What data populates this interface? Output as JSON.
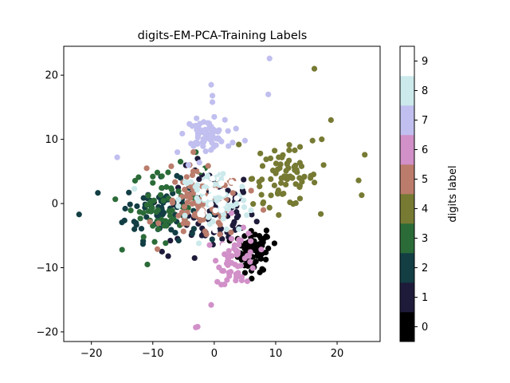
{
  "chart_data": {
    "type": "scatter",
    "title": "digits-EM-PCA-Training Labels",
    "xlabel": "",
    "ylabel": "",
    "xlim": [
      -24.5,
      27
    ],
    "ylim": [
      -21.5,
      24.5
    ],
    "xticks": [
      -20,
      -10,
      0,
      10,
      20
    ],
    "yticks": [
      -20,
      -10,
      0,
      10,
      20
    ],
    "grid": false,
    "colorbar": {
      "label": "digits label",
      "ticks": [
        "0",
        "1",
        "2",
        "3",
        "4",
        "5",
        "6",
        "7",
        "8",
        "9"
      ],
      "range": [
        -0.5,
        9.5
      ],
      "colors": [
        "#000000",
        "#1e1b3a",
        "#123e44",
        "#2b6b38",
        "#767a33",
        "#bb7c6c",
        "#d190c8",
        "#c1bfef",
        "#cce9eb",
        "#ffffff"
      ]
    },
    "series": [
      {
        "name": "0",
        "color": "#000000",
        "center": [
          6.5,
          -7.5
        ],
        "spread": [
          1.3,
          1.6
        ],
        "count": 70,
        "points": [
          [
            2.5,
            -5.8
          ],
          [
            4.5,
            -3.8
          ],
          [
            9.8,
            -6.2
          ],
          [
            8.5,
            -4.2
          ],
          [
            7.8,
            -10.2
          ],
          [
            5.0,
            -10.8
          ],
          [
            -9.8,
            0.2
          ]
        ]
      },
      {
        "name": "1",
        "color": "#1e1b3a",
        "center": [
          -0.5,
          -1.0
        ],
        "spread": [
          3.5,
          3.2
        ],
        "count": 80,
        "points": [
          [
            -8.5,
            -7.5
          ],
          [
            -7.5,
            -8.2
          ],
          [
            -3.2,
            -8.5
          ],
          [
            0.5,
            2.2
          ],
          [
            2.0,
            1.8
          ],
          [
            -2.0,
            4.5
          ]
        ]
      },
      {
        "name": "2",
        "color": "#123e44",
        "center": [
          -8.5,
          -1.0
        ],
        "spread": [
          3.0,
          2.3
        ],
        "count": 80,
        "points": [
          [
            -22.0,
            -1.7
          ],
          [
            -14.5,
            -0.8
          ],
          [
            -13.0,
            -4.0
          ],
          [
            -5.5,
            4.0
          ]
        ]
      },
      {
        "name": "3",
        "color": "#2b6b38",
        "center": [
          -8.0,
          0.0
        ],
        "spread": [
          2.8,
          2.8
        ],
        "count": 55,
        "points": [
          [
            -15.0,
            -7.2
          ],
          [
            -11.5,
            -5.2
          ],
          [
            -3.0,
            8.0
          ],
          [
            -10.0,
            4.2
          ],
          [
            -1.5,
            5.5
          ]
        ]
      },
      {
        "name": "4",
        "color": "#767a33",
        "center": [
          11.5,
          4.0
        ],
        "spread": [
          2.6,
          2.2
        ],
        "count": 75,
        "points": [
          [
            16.3,
            21.0
          ],
          [
            19.0,
            13.0
          ],
          [
            24.5,
            7.6
          ],
          [
            24.0,
            1.3
          ],
          [
            23.5,
            3.6
          ],
          [
            17.5,
            10.0
          ],
          [
            16.0,
            9.8
          ],
          [
            17.8,
            6.0
          ],
          [
            7.5,
            7.8
          ],
          [
            4.0,
            9.2
          ],
          [
            8.0,
            0.2
          ]
        ]
      },
      {
        "name": "5",
        "color": "#bb7c6c",
        "center": [
          -2.0,
          -0.5
        ],
        "spread": [
          3.2,
          2.6
        ],
        "count": 90,
        "points": [
          [
            -11.0,
            5.5
          ],
          [
            -7.0,
            5.8
          ],
          [
            6.0,
            2.0
          ],
          [
            8.0,
            -1.0
          ],
          [
            -4.0,
            6.0
          ]
        ]
      },
      {
        "name": "6",
        "color": "#d190c8",
        "center": [
          3.8,
          -8.5
        ],
        "spread": [
          1.6,
          2.0
        ],
        "count": 55,
        "points": [
          [
            -3.0,
            -19.3
          ],
          [
            -2.7,
            -19.2
          ],
          [
            -0.5,
            -15.8
          ],
          [
            0.5,
            -12.2
          ],
          [
            3.5,
            -12.0
          ],
          [
            1.5,
            -10.5
          ],
          [
            2.8,
            -1.5
          ]
        ]
      },
      {
        "name": "7",
        "color": "#c1bfef",
        "center": [
          -1.5,
          10.8
        ],
        "spread": [
          1.6,
          1.1
        ],
        "count": 70,
        "points": [
          [
            9.0,
            22.6
          ],
          [
            8.8,
            17.0
          ],
          [
            -0.5,
            18.5
          ],
          [
            -0.3,
            16.8
          ],
          [
            -0.3,
            15.8
          ],
          [
            0.0,
            13.5
          ],
          [
            -15.8,
            7.2
          ],
          [
            3.0,
            9.5
          ],
          [
            5.0,
            9.8
          ],
          [
            -4.2,
            6.0
          ],
          [
            -6.0,
            8.0
          ]
        ]
      },
      {
        "name": "8",
        "color": "#cce9eb",
        "center": [
          0.0,
          0.5
        ],
        "spread": [
          2.8,
          2.5
        ],
        "count": 70,
        "points": [
          [
            -13.0,
            2.3
          ],
          [
            4.0,
            -4.0
          ],
          [
            -2.5,
            -6.2
          ]
        ]
      },
      {
        "name": "9",
        "color": "#ffffff",
        "center": [
          0.5,
          1.5
        ],
        "spread": [
          2.0,
          2.0
        ],
        "count": 30,
        "points": [
          [
            -2.0,
            5.2
          ],
          [
            -0.5,
            7.0
          ],
          [
            2.0,
            4.0
          ],
          [
            1.5,
            -6.5
          ]
        ]
      }
    ]
  }
}
